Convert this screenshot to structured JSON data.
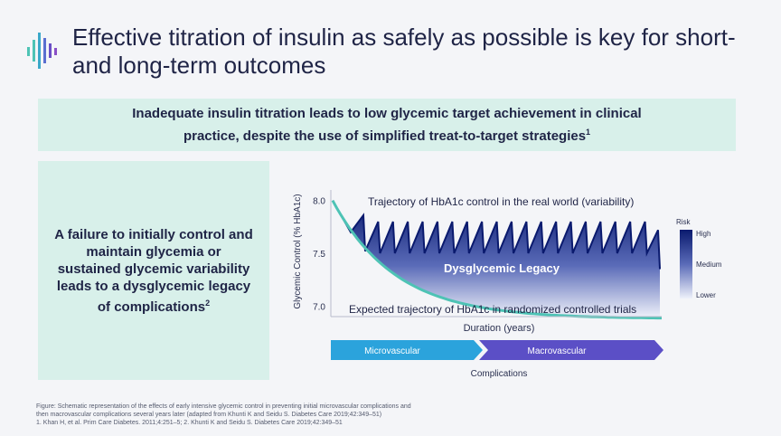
{
  "title": "Effective titration of insulin as safely as possible is key for short- and long-term outcomes",
  "banner": {
    "text": "Inadequate insulin titration leads to low glycemic target achievement in clinical practice, despite the use of simplified treat-to-target strategies",
    "superscript": "1"
  },
  "side_panel": {
    "text": "A failure to initially control and maintain glycemia or sustained glycemic variability leads to a dysglycemic legacy of complications",
    "superscript": "2"
  },
  "chart_data": {
    "type": "line",
    "ylabel": "Glycemic Control (% HbA1c)",
    "xlabel": "Duration (years)",
    "yticks": [
      8.0,
      7.5,
      7.0
    ],
    "ylim": [
      6.9,
      8.1
    ],
    "series": [
      {
        "name": "Trajectory of HbA1c control in the real world (variability)",
        "color": "#0a1a6e"
      },
      {
        "name": "Expected trajectory of HbA1c in randomized controlled trials",
        "color": "#4ec3b5"
      }
    ],
    "area_label": "Dysglycemic Legacy",
    "risk_legend": {
      "title": "Risk",
      "levels": [
        "High",
        "Medium",
        "Lower"
      ]
    },
    "phases": [
      "Microvascular",
      "Macrovascular"
    ],
    "phase_caption": "Complications",
    "colors": {
      "teal": "#4ec3b5",
      "navy": "#0a1a6e",
      "micro": "#2ba3dc",
      "macro": "#5b4fc6"
    }
  },
  "footnotes": [
    "Figure: Schematic representation of the effects of early intensive glycemic control in preventing initial microvascular complications and",
    "then macrovascular complications several years later (adapted from Khunti K and Seidu S. Diabetes Care 2019;42:349–51)",
    "1. Khan H, et al. Prim Care Diabetes. 2011;4:251–5; 2. Khunti K and Seidu S. Diabetes Care 2019;42:349–51"
  ]
}
